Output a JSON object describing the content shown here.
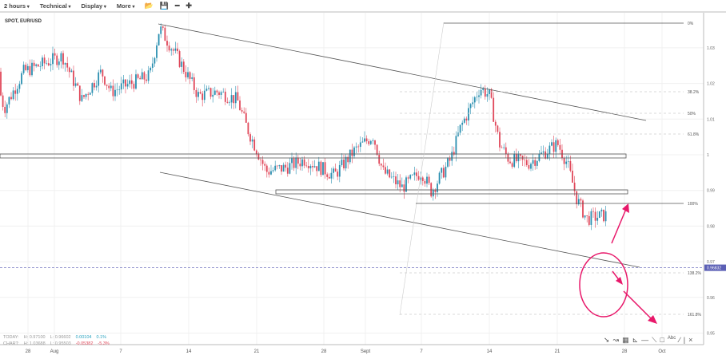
{
  "toolbar": {
    "interval": "2 hours",
    "technical": "Technical",
    "display": "Display",
    "more": "More",
    "icons": [
      "folder-open-icon",
      "save-icon",
      "zoom-out-icon",
      "zoom-in-icon"
    ]
  },
  "symbol": "SPOT, EUR/USD",
  "stats": {
    "today_label": "TODAY:",
    "today_high": "H: 0.97100",
    "today_low": "L: 0.96602",
    "today_change": "0.00104",
    "today_pct": "0.1%",
    "chart_label": "CHART:",
    "chart_high": "H: 1.03688",
    "chart_low": "L: 0.95503",
    "chart_change": "-0.05382",
    "chart_pct": "-5.3%"
  },
  "drawing_tools": [
    "arrow-icon",
    "curve-icon",
    "grid-icon",
    "fan-icon",
    "horizontal-line-icon",
    "line-segment-icon",
    "rectangle-icon",
    "text-icon",
    "pencil-icon",
    "separator",
    "close-icon"
  ],
  "colors": {
    "up": "#2a8fb0",
    "down": "#e0485a",
    "current": "#5b5fb5",
    "annotation": "#e8186a"
  },
  "chart_data": {
    "type": "candlestick",
    "x_ticks": [
      "28",
      "Aug",
      "7",
      "14",
      "21",
      "28",
      "Sept",
      "7",
      "14",
      "21",
      "28",
      "Oct"
    ],
    "y_ticks": [
      "1.03",
      "1.02",
      "1.01",
      "1",
      "0.99",
      "0.98",
      "0.97",
      "0.96",
      "0.95"
    ],
    "ylim": [
      0.9505,
      1.037
    ],
    "current_price": "0.96832",
    "fib_levels": [
      "0%",
      "38.2%",
      "50%",
      "61.8%",
      "100%",
      "138.2%",
      "161.8%"
    ],
    "path": [
      [
        "2022-07-25",
        1.0233
      ],
      [
        "2022-07-26",
        1.013
      ],
      [
        "2022-07-28",
        1.0233
      ],
      [
        "2022-08-01",
        1.0277
      ],
      [
        "2022-08-03",
        1.0154
      ],
      [
        "2022-08-05",
        1.0233
      ],
      [
        "2022-08-06",
        1.0177
      ],
      [
        "2022-08-10",
        1.0222
      ],
      [
        "2022-08-11",
        1.0356
      ],
      [
        "2022-08-13",
        1.0266
      ],
      [
        "2022-08-15",
        1.0166
      ],
      [
        "2022-08-17",
        1.0177
      ],
      [
        "2022-08-19",
        1.0154
      ],
      [
        "2022-08-20",
        1.0076
      ],
      [
        "2022-08-22",
        0.9953
      ],
      [
        "2022-08-24",
        0.9964
      ],
      [
        "2022-08-26",
        0.9987
      ],
      [
        "2022-08-29",
        0.9942
      ],
      [
        "2022-08-31",
        1.0009
      ],
      [
        "2022-09-02",
        1.0054
      ],
      [
        "2022-09-03",
        0.9953
      ],
      [
        "2022-09-05",
        0.9908
      ],
      [
        "2022-09-07",
        0.9953
      ],
      [
        "2022-09-08",
        0.9897
      ],
      [
        "2022-09-10",
        0.9987
      ],
      [
        "2022-09-11",
        1.0076
      ],
      [
        "2022-09-13",
        1.0188
      ],
      [
        "2022-09-14",
        1.0166
      ],
      [
        "2022-09-15",
        1.0031
      ],
      [
        "2022-09-16",
        0.9987
      ],
      [
        "2022-09-18",
        0.9976
      ],
      [
        "2022-09-21",
        1.0031
      ],
      [
        "2022-09-22",
        0.9976
      ],
      [
        "2022-09-23",
        0.9875
      ],
      [
        "2022-09-24",
        0.982
      ],
      [
        "2022-09-26",
        0.9831
      ],
      [
        "2022-09-27",
        0.9742
      ],
      [
        "2022-09-27",
        0.9629
      ],
      [
        "2022-09-28",
        0.956
      ],
      [
        "2022-09-28",
        0.9673
      ]
    ]
  }
}
